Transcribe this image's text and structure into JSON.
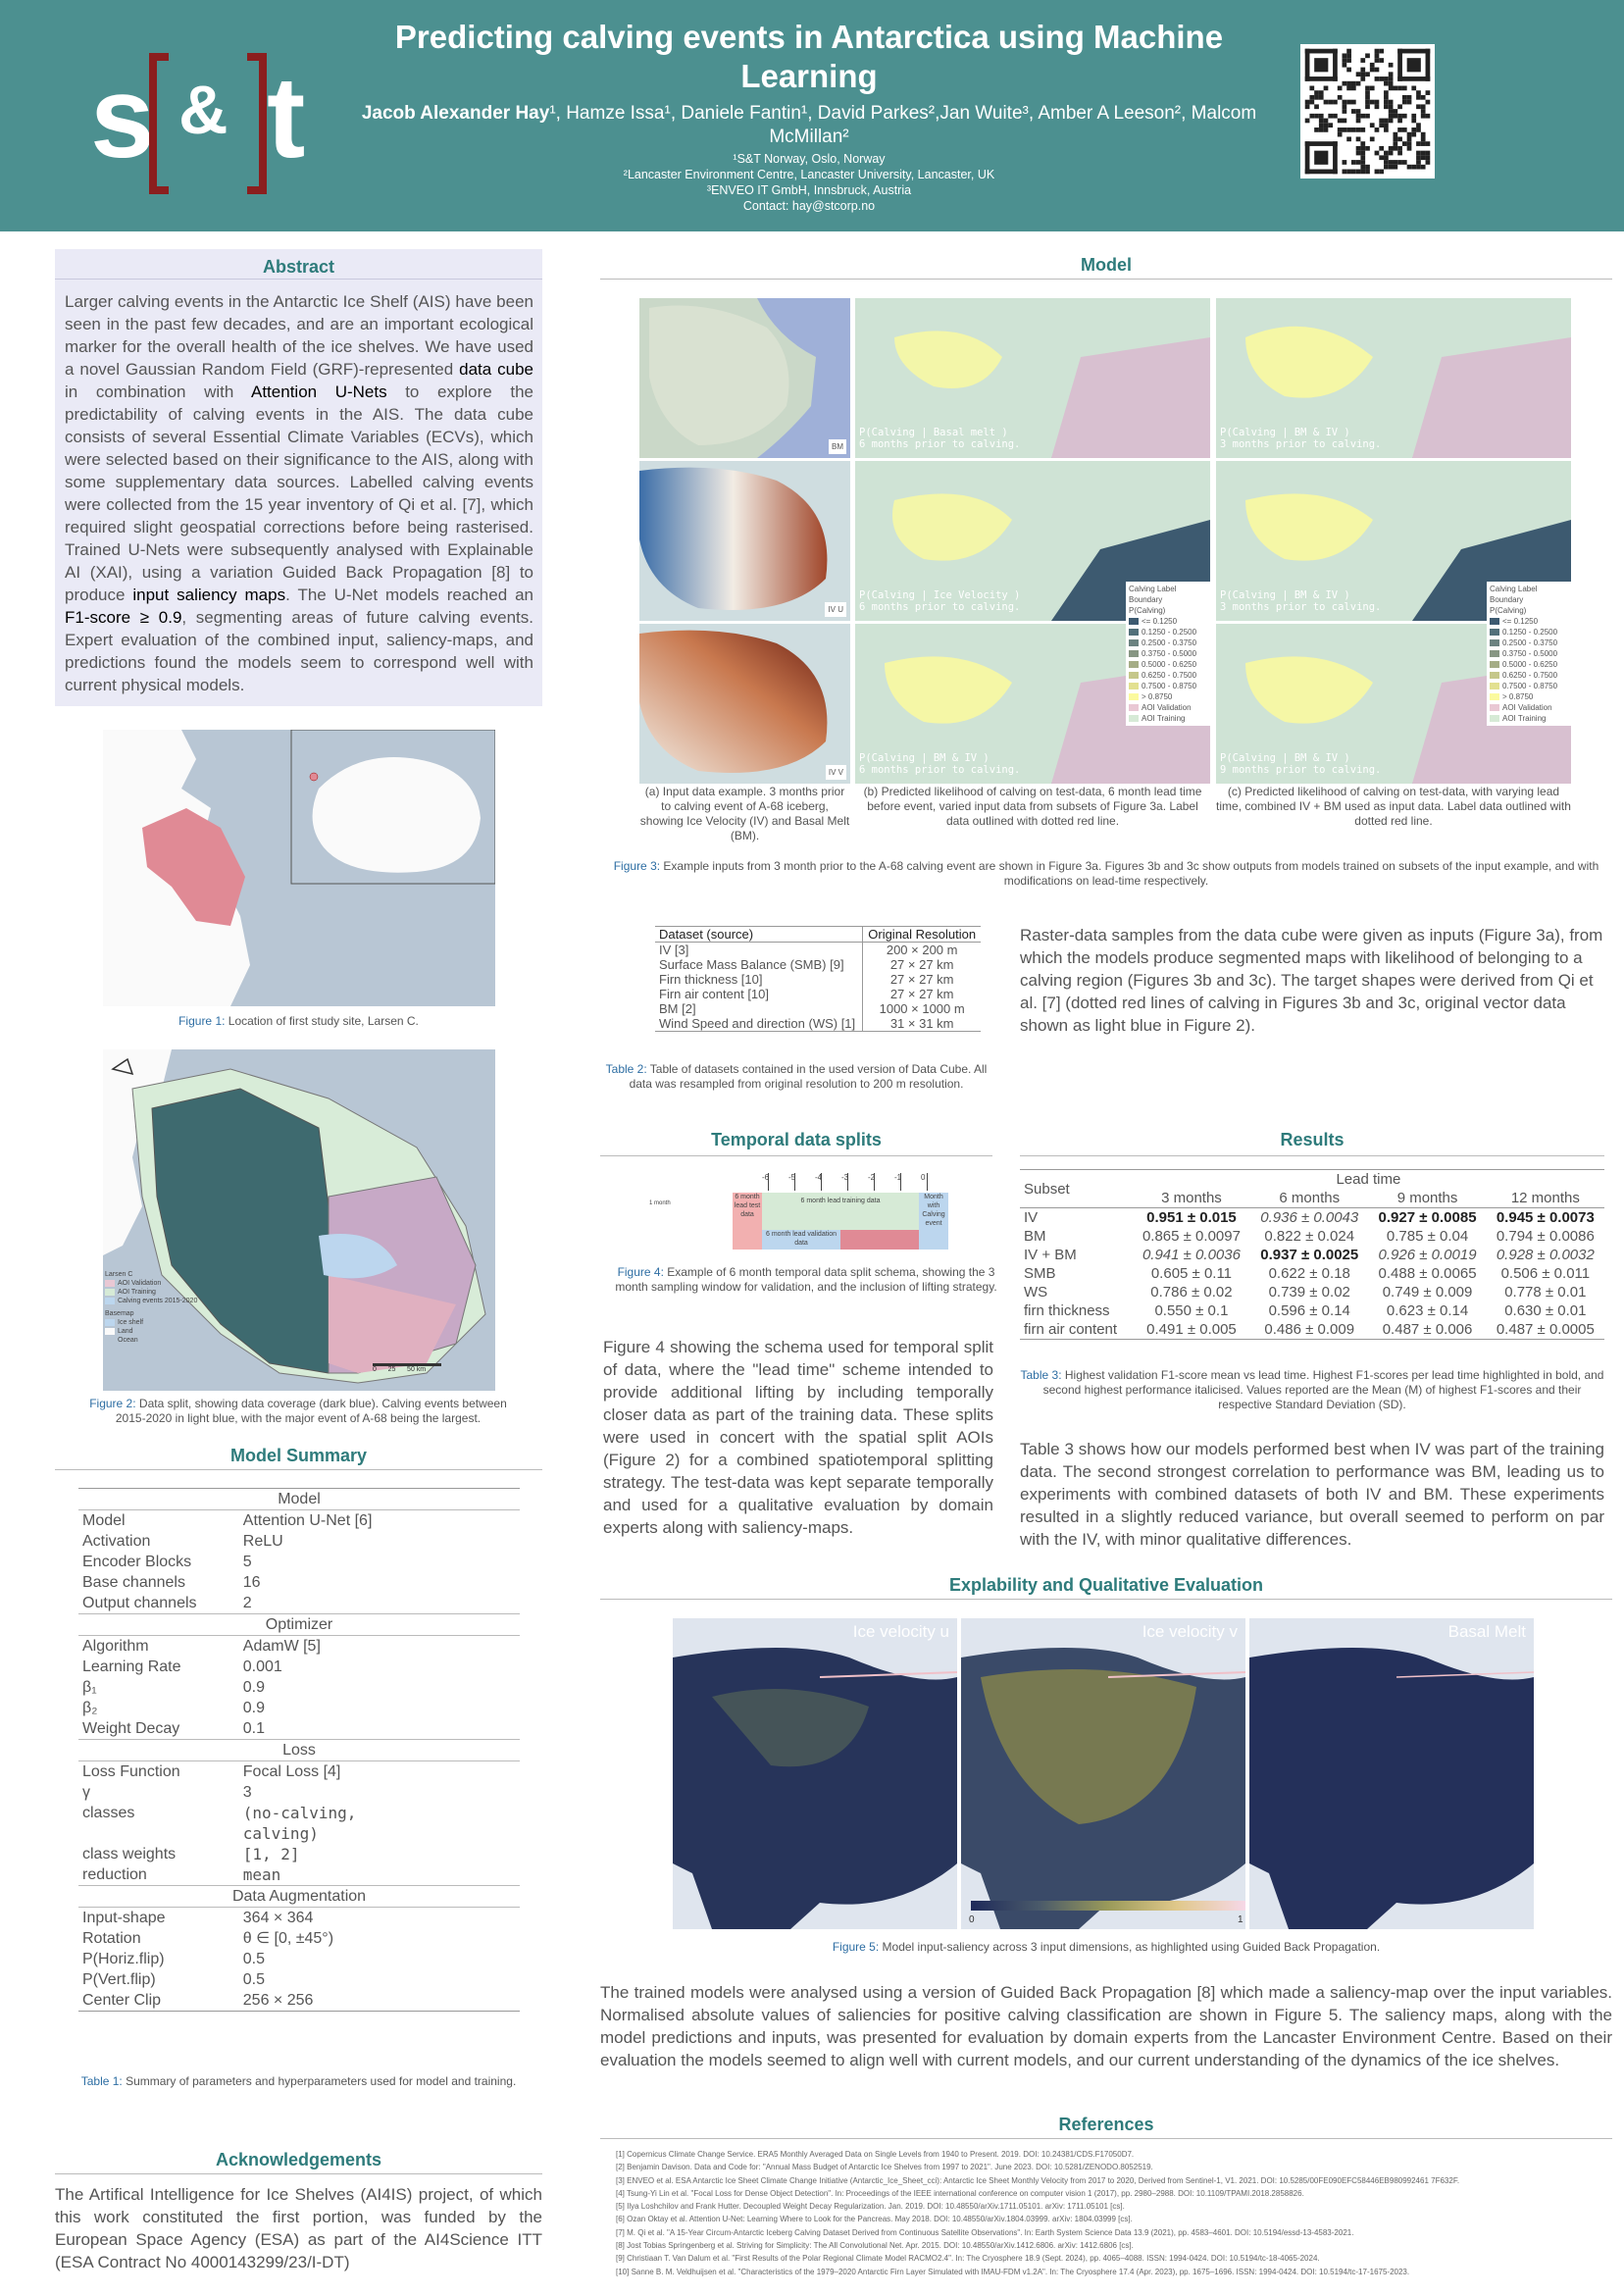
{
  "header": {
    "logo_s": "s",
    "logo_amp": "&",
    "logo_t": "t",
    "title": "Predicting calving events in Antarctica using Machine Learning",
    "authors_bold": "Jacob Alexander Hay",
    "authors_rest": "¹, Hamze Issa¹, Daniele Fantin¹, David Parkes²,Jan Wuite³, Amber A Leeson², Malcom McMillan²",
    "affil1": "¹S&T Norway, Oslo, Norway",
    "affil2": "²Lancaster Environment Centre, Lancaster University, Lancaster, UK",
    "affil3": "³ENVEO IT GmbH, Innsbruck, Austria",
    "contact": "Contact: hay@stcorp.no"
  },
  "abstract": {
    "title": "Abstract",
    "p1": "Larger calving events in the Antarctic Ice Shelf (AIS) have been seen in the past few decades, and are an important ecological marker for the overall health of the ice shelves. We have used a novel Gaussian Random Field (GRF)-represented ",
    "k1": "data cube",
    "p2": " in combination with ",
    "k2": "Attention U-Nets",
    "p3": " to explore the predictability of calving events in the AIS. The data cube consists of several Essential Climate Variables (ECVs), which were selected based on their significance to the AIS, along with some supplementary data sources. Labelled calving events were collected from the 15 year inventory of Qi et al. [7], which required slight geospatial corrections before being rasterised. Trained U-Nets were subsequently analysed with Explainable AI (XAI), using a variation Guided Back Propagation [8] to produce ",
    "k3": "input saliency maps",
    "p4": ". The U-Net models reached an ",
    "k4": "F1-score ≥ 0.9",
    "p5": ", segmenting areas of future calving events. Expert evaluation of the combined input, saliency-maps, and predictions found the models seem to correspond well with current physical models."
  },
  "fig1": {
    "label": "Figure 1:",
    "text": " Location of first study site, Larsen C."
  },
  "fig2": {
    "label": "Figure 2:",
    "text": " Data split, showing data coverage (dark blue). Calving events between 2015-2020 in light blue, with the major event of A-68 being the largest.",
    "legend_title": "Larsen C",
    "legend_items": [
      "AOI Validation",
      "AOI Training",
      "Calving events 2015-2020"
    ],
    "basemap_title": "Basemap",
    "basemap_items": [
      "Ice shelf",
      "Land",
      "Ocean"
    ],
    "scale": [
      "0",
      "25",
      "50 km"
    ]
  },
  "model_summary": {
    "title": "Model Summary",
    "groups": [
      {
        "name": "Model",
        "rows": [
          [
            "Model",
            "Attention U-Net [6]"
          ],
          [
            "Activation",
            "ReLU"
          ],
          [
            "Encoder Blocks",
            "5"
          ],
          [
            "Base channels",
            "16"
          ],
          [
            "Output channels",
            "2"
          ]
        ]
      },
      {
        "name": "Optimizer",
        "rows": [
          [
            "Algorithm",
            "AdamW [5]"
          ],
          [
            "Learning Rate",
            "0.001"
          ],
          [
            "β₁",
            "0.9"
          ],
          [
            "β₂",
            "0.9"
          ],
          [
            "Weight Decay",
            "0.1"
          ]
        ]
      },
      {
        "name": "Loss",
        "rows": [
          [
            "Loss Function",
            "Focal Loss [4]"
          ],
          [
            "γ",
            "3"
          ],
          [
            "classes",
            "(no-calving,"
          ],
          [
            "",
            "calving)"
          ],
          [
            "class weights",
            "[1, 2]"
          ],
          [
            "reduction",
            "mean"
          ]
        ]
      },
      {
        "name": "Data Augmentation",
        "rows": [
          [
            "Input-shape",
            "364 × 364"
          ],
          [
            "Rotation",
            "θ ∈ [0, ±45°)"
          ],
          [
            "P(Horiz.flip)",
            "0.5"
          ],
          [
            "P(Vert.flip)",
            "0.5"
          ],
          [
            "Center Clip",
            "256 × 256"
          ]
        ]
      }
    ],
    "caption_label": "Table 1:",
    "caption_text": " Summary of parameters and hyperparameters used for model and training."
  },
  "acknowledgements": {
    "title": "Acknowledgements",
    "text": "The Artifical Intelligence for Ice Shelves (AI4IS) project, of which this work constituted the first portion, was funded by the European Space Agency (ESA) as part of the AI4Science ITT (ESA Contract No 4000143299/23/I-DT)"
  },
  "model": {
    "title": "Model",
    "panel_texts": [
      "P(Calving | Basal melt )\n6 months prior to calving.",
      "P(Calving | BM & IV )\n3 months prior to calving.",
      "P(Calving | Ice Velocity )\n6 months prior to calving.",
      "P(Calving | BM & IV )\n3 months prior to calving.",
      "P(Calving | BM & IV )\n6 months prior to calving.",
      "P(Calving | BM & IV )\n9 months prior to calving."
    ],
    "input_labels": [
      "BM",
      "IV U",
      "IV V"
    ],
    "legend_boundary": "Calving Label Boundary",
    "legend_title": "P(Calving)",
    "legend_items": [
      "<= 0.1250",
      "0.1250 - 0.2500",
      "0.2500 - 0.3750",
      "0.3750 - 0.5000",
      "0.5000 - 0.6250",
      "0.6250 - 0.7500",
      "0.7500 - 0.8750",
      "> 0.8750",
      "AOI Validation",
      "AOI Training"
    ],
    "legend_colors": [
      "#3d5a70",
      "#52707a",
      "#6b8280",
      "#879683",
      "#a5ad86",
      "#c5c78a",
      "#e2e090",
      "#fbfa9e",
      "#e9c8d4",
      "#d6ead6"
    ],
    "scale": [
      "0",
      "25",
      "50 km"
    ],
    "sub_a": "(a) Input data example. 3 months prior to calving event of A-68 iceberg, showing Ice Velocity (IV) and Basal Melt (BM).",
    "sub_b": "(b) Predicted likelihood of calving on test-data, 6 month lead time before event, varied input data from subsets of Figure 3a. Label data outlined with dotted red line.",
    "sub_c": "(c) Predicted likelihood of calving on test-data, with varying lead time, combined IV + BM used as input data. Label data outlined with dotted red line.",
    "fig3_label": "Figure 3:",
    "fig3_text": " Example inputs from 3 month prior to the A-68 calving event are shown in Figure 3a. Figures 3b and 3c show outputs from models trained on subsets of the input example, and with modifications on lead-time respectively."
  },
  "datasets": {
    "headers": [
      "Dataset (source)",
      "Original Resolution"
    ],
    "rows": [
      [
        "IV [3]",
        "200 × 200 m"
      ],
      [
        "Surface Mass Balance (SMB) [9]",
        "27 × 27 km"
      ],
      [
        "Firn thickness [10]",
        "27 × 27 km"
      ],
      [
        "Firn air content [10]",
        "27 × 27 km"
      ],
      [
        "BM [2]",
        "1000 × 1000 m"
      ],
      [
        "Wind Speed and direction (WS) [1]",
        "31 × 31 km"
      ]
    ],
    "caption_label": "Table 2:",
    "caption_text": " Table of datasets contained in the used version of Data Cube. All data was resampled from original resolution to 200 m resolution."
  },
  "model_text": "Raster-data samples from the data cube were given as inputs (Figure 3a), from which the models produce segmented maps with likelihood of belonging to a calving region (Figures 3b and 3c). The target shapes were derived from Qi et al. [7] (dotted red lines of calving in Figures 3b and 3c, original vector data shown as light blue in Figure 2).",
  "temporal": {
    "title": "Temporal data splits",
    "ticks": [
      "-6",
      "-5",
      "-4",
      "-3",
      "-2",
      "-1",
      "0"
    ],
    "month": "1 month",
    "test_label": "6 month lead test data",
    "train_label": "6 month lead training data",
    "val_label": "6 month lead validation data",
    "calving_label": "Month with Calving event",
    "caption_label": "Figure 4:",
    "caption_text": " Example of 6 month temporal data split schema, showing the 3 month sampling window for validation, and the inclusion of lifting strategy.",
    "text": "Figure 4 showing the schema used for temporal split of data, where the \"lead time\" scheme intended to provide additional lifting by including temporally closer data as part of the training data. These splits were used in concert with the spatial split AOIs (Figure 2) for a combined spatiotemporal splitting strategy. The test-data was kept separate temporally and used for a qualitative evaluation by domain experts along with saliency-maps."
  },
  "results": {
    "title": "Results",
    "lead_time": "Lead time",
    "subset": "Subset",
    "cols": [
      "3 months",
      "6 months",
      "9 months",
      "12 months"
    ],
    "rows": [
      [
        "IV",
        "0.951 ± 0.015",
        "0.936 ± 0.0043",
        "0.927 ± 0.0085",
        "0.945 ± 0.0073"
      ],
      [
        "BM",
        "0.865 ± 0.0097",
        "0.822 ± 0.024",
        "0.785 ± 0.04",
        "0.794 ± 0.0086"
      ],
      [
        "IV + BM",
        "0.941 ± 0.0036",
        "0.937 ± 0.0025",
        "0.926 ± 0.0019",
        "0.928 ± 0.0032"
      ],
      [
        "SMB",
        "0.605 ± 0.11",
        "0.622 ± 0.18",
        "0.488 ± 0.0065",
        "0.506 ± 0.011"
      ],
      [
        "WS",
        "0.786 ± 0.02",
        "0.739 ± 0.02",
        "0.749 ± 0.009",
        "0.778 ± 0.01"
      ],
      [
        "firn thickness",
        "0.550 ± 0.1",
        "0.596 ± 0.14",
        "0.623 ± 0.14",
        "0.630 ± 0.01"
      ],
      [
        "firn air content",
        "0.491 ± 0.005",
        "0.486 ± 0.009",
        "0.487 ± 0.006",
        "0.487 ± 0.0005"
      ]
    ],
    "caption_label": "Table 3:",
    "caption_text": " Highest validation F1-score mean vs lead time. Highest F1-scores per lead time highlighted in bold, and second highest performance italicised. Values reported are the Mean (M) of highest F1-scores and their respective Standard Deviation (SD).",
    "text": "Table 3 shows how our models performed best when IV was part of the training data. The second strongest correlation to performance was BM, leading us to experiments with combined datasets of both IV and BM. These experiments resulted in a slightly reduced variance, but overall seemed to perform on par with the IV, with minor qualitative differences."
  },
  "explain": {
    "title": "Explability and Qualitative Evaluation",
    "labels": [
      "Ice velocity  u",
      "Ice velocity  v",
      "Basal Melt"
    ],
    "cbar_min": "0",
    "cbar_max": "1",
    "caption_label": "Figure 5:",
    "caption_text": " Model input-saliency across 3 input dimensions, as highlighted using Guided Back Propagation.",
    "text": "The trained models were analysed using a version of Guided Back Propagation [8] which made a saliency-map over the input variables. Normalised absolute values of saliencies for positive calving classification are shown in Figure 5. The saliency maps, along with the model predictions and inputs, was presented for evaluation by domain experts from the Lancaster Environment Centre. Based on their evaluation the models seemed to align well with current models, and our current understanding of the dynamics of the ice shelves."
  },
  "references": {
    "title": "References",
    "items": [
      "[1]   Copernicus Climate Change Service. ERA5 Monthly Averaged Data on Single Levels from 1940 to Present. 2019. DOI: 10.24381/CDS.F17050D7.",
      "[2]   Benjamin Davison. Data and Code for: \"Annual Mass Budget of Antarctic Ice Shelves from 1997 to 2021\". June 2023. DOI: 10.5281/ZENODO.8052519.",
      "[3]   ENVEO et al. ESA Antarctic Ice Sheet Climate Change Initiative (Antarctic_Ice_Sheet_cci): Antarctic Ice Sheet Monthly Velocity from 2017 to 2020, Derived from Sentinel-1, V1. 2021. DOI: 10.5285/00FE090EFC58446EB980992461 7F632F.",
      "[4]   Tsung-Yi Lin et al. \"Focal Loss for Dense Object Detection\". In: Proceedings of the IEEE international conference on computer vision 1 (2017), pp. 2980–2988. DOI: 10.1109/TPAMI.2018.2858826.",
      "[5]   Ilya Loshchilov and Frank Hutter. Decoupled Weight Decay Regularization. Jan. 2019. DOI: 10.48550/arXiv.1711.05101. arXiv: 1711.05101 [cs].",
      "[6]   Ozan Oktay et al. Attention U-Net: Learning Where to Look for the Pancreas. May 2018. DOI: 10.48550/arXiv.1804.03999. arXiv: 1804.03999 [cs].",
      "[7]   M. Qi et al. \"A 15-Year Circum-Antarctic Iceberg Calving Dataset Derived from Continuous Satellite Observations\". In: Earth System Science Data 13.9 (2021), pp. 4583–4601. DOI: 10.5194/essd-13-4583-2021.",
      "[8]   Jost Tobias Springenberg et al. Striving for Simplicity: The All Convolutional Net. Apr. 2015. DOI: 10.48550/arXiv.1412.6806. arXiv: 1412.6806 [cs].",
      "[9]   Christiaan T. Van Dalum et al. \"First Results of the Polar Regional Climate Model RACMO2.4\". In: The Cryosphere 18.9 (Sept. 2024), pp. 4065–4088. ISSN: 1994-0424. DOI: 10.5194/tc-18-4065-2024.",
      "[10]  Sanne B. M. Veldhuijsen et al. \"Characteristics of the 1979–2020 Antarctic Firn Layer Simulated with IMAU-FDM v1.2A\". In: The Cryosphere 17.4 (Apr. 2023), pp. 1675–1696. ISSN: 1994-0424. DOI: 10.5194/tc-17-1675-2023."
    ]
  }
}
